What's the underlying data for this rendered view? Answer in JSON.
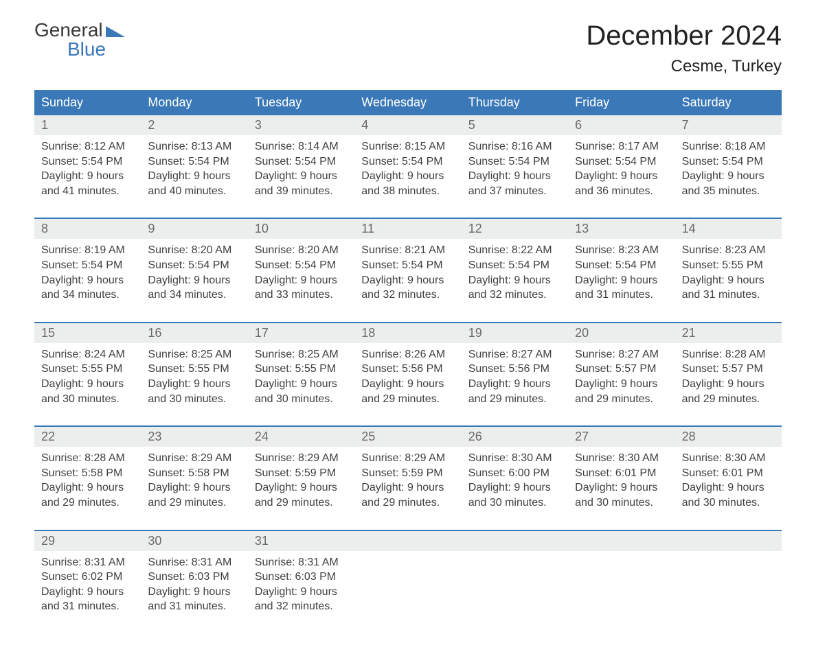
{
  "logo": {
    "word1": "General",
    "word2": "Blue"
  },
  "title": "December 2024",
  "location": "Cesme, Turkey",
  "colors": {
    "header_bg": "#3b78b8",
    "header_text": "#ffffff",
    "day_num_bg": "#eceded",
    "week_border": "#3b78b8",
    "text": "#404040",
    "logo_blue": "#3b78b8"
  },
  "day_names": [
    "Sunday",
    "Monday",
    "Tuesday",
    "Wednesday",
    "Thursday",
    "Friday",
    "Saturday"
  ],
  "weeks": [
    [
      {
        "n": "1",
        "sunrise": "Sunrise: 8:12 AM",
        "sunset": "Sunset: 5:54 PM",
        "d1": "Daylight: 9 hours",
        "d2": "and 41 minutes."
      },
      {
        "n": "2",
        "sunrise": "Sunrise: 8:13 AM",
        "sunset": "Sunset: 5:54 PM",
        "d1": "Daylight: 9 hours",
        "d2": "and 40 minutes."
      },
      {
        "n": "3",
        "sunrise": "Sunrise: 8:14 AM",
        "sunset": "Sunset: 5:54 PM",
        "d1": "Daylight: 9 hours",
        "d2": "and 39 minutes."
      },
      {
        "n": "4",
        "sunrise": "Sunrise: 8:15 AM",
        "sunset": "Sunset: 5:54 PM",
        "d1": "Daylight: 9 hours",
        "d2": "and 38 minutes."
      },
      {
        "n": "5",
        "sunrise": "Sunrise: 8:16 AM",
        "sunset": "Sunset: 5:54 PM",
        "d1": "Daylight: 9 hours",
        "d2": "and 37 minutes."
      },
      {
        "n": "6",
        "sunrise": "Sunrise: 8:17 AM",
        "sunset": "Sunset: 5:54 PM",
        "d1": "Daylight: 9 hours",
        "d2": "and 36 minutes."
      },
      {
        "n": "7",
        "sunrise": "Sunrise: 8:18 AM",
        "sunset": "Sunset: 5:54 PM",
        "d1": "Daylight: 9 hours",
        "d2": "and 35 minutes."
      }
    ],
    [
      {
        "n": "8",
        "sunrise": "Sunrise: 8:19 AM",
        "sunset": "Sunset: 5:54 PM",
        "d1": "Daylight: 9 hours",
        "d2": "and 34 minutes."
      },
      {
        "n": "9",
        "sunrise": "Sunrise: 8:20 AM",
        "sunset": "Sunset: 5:54 PM",
        "d1": "Daylight: 9 hours",
        "d2": "and 34 minutes."
      },
      {
        "n": "10",
        "sunrise": "Sunrise: 8:20 AM",
        "sunset": "Sunset: 5:54 PM",
        "d1": "Daylight: 9 hours",
        "d2": "and 33 minutes."
      },
      {
        "n": "11",
        "sunrise": "Sunrise: 8:21 AM",
        "sunset": "Sunset: 5:54 PM",
        "d1": "Daylight: 9 hours",
        "d2": "and 32 minutes."
      },
      {
        "n": "12",
        "sunrise": "Sunrise: 8:22 AM",
        "sunset": "Sunset: 5:54 PM",
        "d1": "Daylight: 9 hours",
        "d2": "and 32 minutes."
      },
      {
        "n": "13",
        "sunrise": "Sunrise: 8:23 AM",
        "sunset": "Sunset: 5:54 PM",
        "d1": "Daylight: 9 hours",
        "d2": "and 31 minutes."
      },
      {
        "n": "14",
        "sunrise": "Sunrise: 8:23 AM",
        "sunset": "Sunset: 5:55 PM",
        "d1": "Daylight: 9 hours",
        "d2": "and 31 minutes."
      }
    ],
    [
      {
        "n": "15",
        "sunrise": "Sunrise: 8:24 AM",
        "sunset": "Sunset: 5:55 PM",
        "d1": "Daylight: 9 hours",
        "d2": "and 30 minutes."
      },
      {
        "n": "16",
        "sunrise": "Sunrise: 8:25 AM",
        "sunset": "Sunset: 5:55 PM",
        "d1": "Daylight: 9 hours",
        "d2": "and 30 minutes."
      },
      {
        "n": "17",
        "sunrise": "Sunrise: 8:25 AM",
        "sunset": "Sunset: 5:55 PM",
        "d1": "Daylight: 9 hours",
        "d2": "and 30 minutes."
      },
      {
        "n": "18",
        "sunrise": "Sunrise: 8:26 AM",
        "sunset": "Sunset: 5:56 PM",
        "d1": "Daylight: 9 hours",
        "d2": "and 29 minutes."
      },
      {
        "n": "19",
        "sunrise": "Sunrise: 8:27 AM",
        "sunset": "Sunset: 5:56 PM",
        "d1": "Daylight: 9 hours",
        "d2": "and 29 minutes."
      },
      {
        "n": "20",
        "sunrise": "Sunrise: 8:27 AM",
        "sunset": "Sunset: 5:57 PM",
        "d1": "Daylight: 9 hours",
        "d2": "and 29 minutes."
      },
      {
        "n": "21",
        "sunrise": "Sunrise: 8:28 AM",
        "sunset": "Sunset: 5:57 PM",
        "d1": "Daylight: 9 hours",
        "d2": "and 29 minutes."
      }
    ],
    [
      {
        "n": "22",
        "sunrise": "Sunrise: 8:28 AM",
        "sunset": "Sunset: 5:58 PM",
        "d1": "Daylight: 9 hours",
        "d2": "and 29 minutes."
      },
      {
        "n": "23",
        "sunrise": "Sunrise: 8:29 AM",
        "sunset": "Sunset: 5:58 PM",
        "d1": "Daylight: 9 hours",
        "d2": "and 29 minutes."
      },
      {
        "n": "24",
        "sunrise": "Sunrise: 8:29 AM",
        "sunset": "Sunset: 5:59 PM",
        "d1": "Daylight: 9 hours",
        "d2": "and 29 minutes."
      },
      {
        "n": "25",
        "sunrise": "Sunrise: 8:29 AM",
        "sunset": "Sunset: 5:59 PM",
        "d1": "Daylight: 9 hours",
        "d2": "and 29 minutes."
      },
      {
        "n": "26",
        "sunrise": "Sunrise: 8:30 AM",
        "sunset": "Sunset: 6:00 PM",
        "d1": "Daylight: 9 hours",
        "d2": "and 30 minutes."
      },
      {
        "n": "27",
        "sunrise": "Sunrise: 8:30 AM",
        "sunset": "Sunset: 6:01 PM",
        "d1": "Daylight: 9 hours",
        "d2": "and 30 minutes."
      },
      {
        "n": "28",
        "sunrise": "Sunrise: 8:30 AM",
        "sunset": "Sunset: 6:01 PM",
        "d1": "Daylight: 9 hours",
        "d2": "and 30 minutes."
      }
    ],
    [
      {
        "n": "29",
        "sunrise": "Sunrise: 8:31 AM",
        "sunset": "Sunset: 6:02 PM",
        "d1": "Daylight: 9 hours",
        "d2": "and 31 minutes."
      },
      {
        "n": "30",
        "sunrise": "Sunrise: 8:31 AM",
        "sunset": "Sunset: 6:03 PM",
        "d1": "Daylight: 9 hours",
        "d2": "and 31 minutes."
      },
      {
        "n": "31",
        "sunrise": "Sunrise: 8:31 AM",
        "sunset": "Sunset: 6:03 PM",
        "d1": "Daylight: 9 hours",
        "d2": "and 32 minutes."
      },
      null,
      null,
      null,
      null
    ]
  ]
}
